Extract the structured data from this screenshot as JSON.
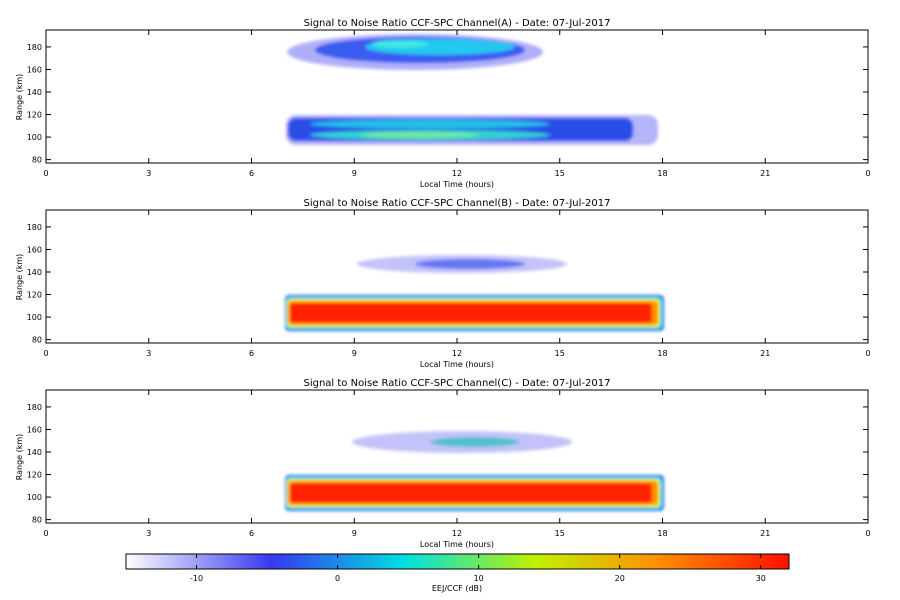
{
  "chart_data": [
    {
      "type": "heatmap",
      "title": "Signal to Noise Ratio CCF-SPC Channel(A) - Date: 07-Jul-2017",
      "xlabel": "Local Time (hours)",
      "ylabel": "Range (km)",
      "xlim": [
        0,
        24
      ],
      "ylim": [
        77,
        195
      ],
      "xticks": [
        "0",
        "3",
        "6",
        "9",
        "12",
        "15",
        "18",
        "21",
        "0"
      ],
      "yticks": [
        80,
        100,
        120,
        140,
        160,
        180
      ],
      "echo_regions": [
        {
          "region": "upper echo layer",
          "time_start": 7.0,
          "time_end": 16.2,
          "range_low": 165,
          "range_high": 190,
          "peak_snr_db": 4
        },
        {
          "region": "lower echo layer",
          "time_start": 7.0,
          "time_end": 17.9,
          "range_low": 96,
          "range_high": 122,
          "peak_snr_db": 8
        }
      ]
    },
    {
      "type": "heatmap",
      "title": "Signal to Noise Ratio CCF-SPC Channel(B) - Date: 07-Jul-2017",
      "xlabel": "Local Time (hours)",
      "ylabel": "Range (km)",
      "xlim": [
        0,
        24
      ],
      "ylim": [
        77,
        195
      ],
      "xticks": [
        "0",
        "3",
        "6",
        "9",
        "12",
        "15",
        "18",
        "21",
        "0"
      ],
      "yticks": [
        80,
        100,
        120,
        140,
        160,
        180
      ],
      "echo_regions": [
        {
          "region": "upper echo layer",
          "time_start": 9.0,
          "time_end": 15.5,
          "range_low": 138,
          "range_high": 158,
          "peak_snr_db": 3
        },
        {
          "region": "lower echo layer",
          "time_start": 7.0,
          "time_end": 18.0,
          "range_low": 90,
          "range_high": 122,
          "peak_snr_db": 30
        }
      ]
    },
    {
      "type": "heatmap",
      "title": "Signal to Noise Ratio CCF-SPC Channel(C) - Date: 07-Jul-2017",
      "xlabel": "Local Time (hours)",
      "ylabel": "Range (km)",
      "xlim": [
        0,
        24
      ],
      "ylim": [
        77,
        195
      ],
      "xticks": [
        "0",
        "3",
        "6",
        "9",
        "12",
        "15",
        "18",
        "21",
        "0"
      ],
      "yticks": [
        80,
        100,
        120,
        140,
        160,
        180
      ],
      "echo_regions": [
        {
          "region": "upper echo layer",
          "time_start": 9.0,
          "time_end": 15.8,
          "range_low": 135,
          "range_high": 160,
          "peak_snr_db": 5
        },
        {
          "region": "lower echo layer",
          "time_start": 7.0,
          "time_end": 18.0,
          "range_low": 90,
          "range_high": 122,
          "peak_snr_db": 30
        }
      ]
    }
  ],
  "colorbar": {
    "label": "EEJ/CCF (dB)",
    "range": [
      -15,
      32
    ],
    "ticks": [
      -10,
      0,
      10,
      20,
      30
    ],
    "colors": [
      "#ffffff",
      "#3838f0",
      "#00e0e0",
      "#c0f000",
      "#ff9000",
      "#ff1000"
    ]
  }
}
